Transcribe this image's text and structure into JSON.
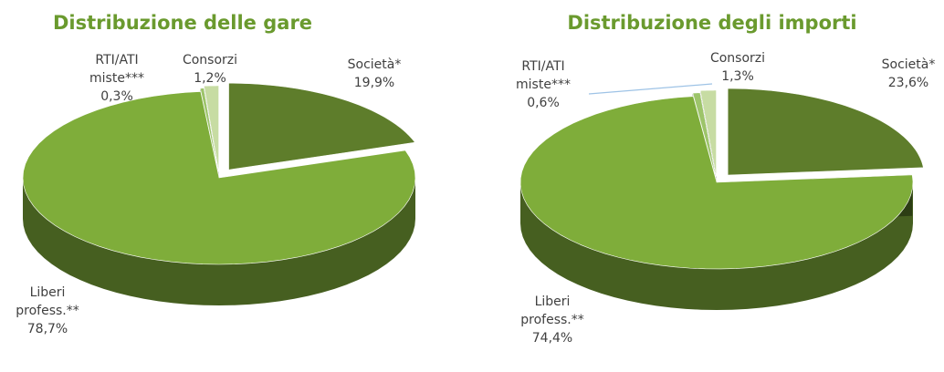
{
  "chart_data": [
    {
      "type": "pie",
      "title": "Distribuzione delle gare",
      "categories": [
        "Società*",
        "Liberi profess.**",
        "RTI/ATI miste***",
        "Consorzi"
      ],
      "values": [
        19.9,
        78.7,
        0.3,
        1.2
      ],
      "value_labels": [
        "19,9%",
        "78,7%",
        "0,3%",
        "1,2%"
      ],
      "colors": [
        "#5e7d2b",
        "#7fad3a",
        "#9dc46a",
        "#c7dca3"
      ]
    },
    {
      "type": "pie",
      "title": "Distribuzione degli importi",
      "categories": [
        "Società*",
        "Liberi profess.**",
        "RTI/ATI miste***",
        "Consorzi"
      ],
      "values": [
        23.6,
        74.4,
        0.6,
        1.3
      ],
      "value_labels": [
        "23,6%",
        "74,4%",
        "0,6%",
        "1,3%"
      ],
      "colors": [
        "#5e7d2b",
        "#7fad3a",
        "#9dc46a",
        "#c7dca3"
      ]
    }
  ]
}
